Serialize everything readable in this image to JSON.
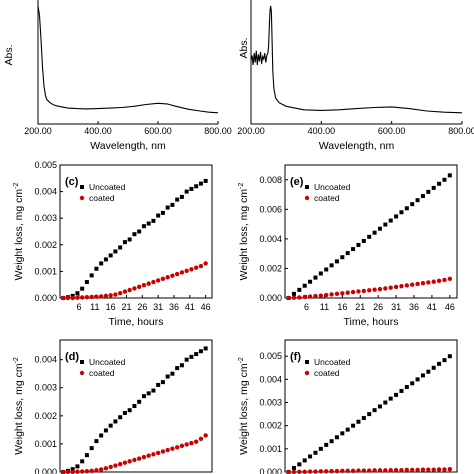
{
  "chart_data": [
    {
      "type": "line",
      "panel": "top-left",
      "xlabel": "Wavelength, nm",
      "ylabel": "Abs.",
      "xlim": [
        200,
        800
      ],
      "xticks": [
        "200.00",
        "400.00",
        "600.00",
        "800.00"
      ],
      "x": [
        200,
        205,
        210,
        215,
        220,
        225,
        230,
        240,
        250,
        260,
        280,
        300,
        330,
        360,
        400,
        440,
        480,
        520,
        560,
        600,
        630,
        660,
        700,
        740,
        770,
        800
      ],
      "y": [
        1.0,
        0.92,
        0.72,
        0.48,
        0.32,
        0.24,
        0.205,
        0.18,
        0.165,
        0.155,
        0.145,
        0.135,
        0.13,
        0.128,
        0.13,
        0.135,
        0.14,
        0.15,
        0.165,
        0.175,
        0.17,
        0.15,
        0.125,
        0.11,
        0.1,
        0.095
      ],
      "ylim": [
        0,
        1.05
      ]
    },
    {
      "type": "line",
      "panel": "top-right",
      "xlabel": "Wavelength, nm",
      "ylabel": "Abs.",
      "xlim": [
        200,
        800
      ],
      "xticks": [
        "200.00",
        "400.00",
        "600.00",
        "800.00"
      ],
      "x": [
        200,
        203,
        206,
        209,
        212,
        215,
        218,
        221,
        224,
        227,
        230,
        233,
        236,
        239,
        242,
        245,
        248,
        250,
        252,
        254,
        256,
        258,
        260,
        262,
        265,
        270,
        280,
        300,
        350,
        400,
        450,
        500,
        550,
        600,
        650,
        700,
        750,
        800
      ],
      "y": [
        0.54,
        0.58,
        0.5,
        0.6,
        0.52,
        0.62,
        0.5,
        0.59,
        0.53,
        0.61,
        0.51,
        0.57,
        0.55,
        0.6,
        0.52,
        0.58,
        0.6,
        0.66,
        0.82,
        0.96,
        1.0,
        0.95,
        0.7,
        0.45,
        0.3,
        0.22,
        0.18,
        0.15,
        0.12,
        0.115,
        0.12,
        0.13,
        0.14,
        0.145,
        0.13,
        0.11,
        0.1,
        0.095
      ],
      "ylim": [
        0,
        1.05
      ]
    },
    {
      "type": "scatter",
      "panel": "(c)",
      "label": "(c)",
      "xlabel": "Time, hours",
      "ylabel": "Weight loss, mg cm",
      "ylabel_sup": "-2",
      "xlim": [
        0,
        48
      ],
      "ylim": [
        0,
        0.005
      ],
      "xticks": [
        "6",
        "11",
        "16",
        "21",
        "26",
        "31",
        "36",
        "41",
        "46"
      ],
      "yticks": [
        "0.000",
        "0.001",
        "0.002",
        "0.003",
        "0.004",
        "0.005"
      ],
      "legend_location": "upper-left",
      "series": [
        {
          "name": "Uncoated",
          "color": "#000000",
          "x": [
            1,
            2.5,
            4,
            5.5,
            7,
            8.5,
            10,
            11.5,
            13,
            14.5,
            16,
            17.5,
            19,
            20.5,
            22,
            23.5,
            25,
            26.5,
            28,
            29.5,
            31,
            32.5,
            34,
            35.5,
            37,
            38.5,
            40,
            41.5,
            43,
            44.5,
            46
          ],
          "y": [
            0.0,
            3e-05,
            8e-05,
            0.00018,
            0.00035,
            0.0006,
            0.00085,
            0.0011,
            0.0013,
            0.00145,
            0.0016,
            0.00175,
            0.0019,
            0.0021,
            0.0022,
            0.0024,
            0.0025,
            0.0027,
            0.0028,
            0.0029,
            0.0031,
            0.0032,
            0.0034,
            0.0035,
            0.0037,
            0.0038,
            0.004,
            0.0041,
            0.0042,
            0.0043,
            0.0044
          ]
        },
        {
          "name": "coated",
          "color": "#cc0000",
          "x": [
            1,
            2.5,
            4,
            5.5,
            7,
            8.5,
            10,
            11.5,
            13,
            14.5,
            16,
            17.5,
            19,
            20.5,
            22,
            23.5,
            25,
            26.5,
            28,
            29.5,
            31,
            32.5,
            34,
            35.5,
            37,
            38.5,
            40,
            41.5,
            43,
            44.5,
            46
          ],
          "y": [
            0.0,
            0.0,
            0.0,
            1e-05,
            2e-05,
            3e-05,
            4e-05,
            5e-05,
            6e-05,
            8e-05,
            0.0001,
            0.00013,
            0.00018,
            0.00024,
            0.0003,
            0.00036,
            0.00042,
            0.00048,
            0.00054,
            0.0006,
            0.00066,
            0.00072,
            0.00078,
            0.00084,
            0.0009,
            0.00096,
            0.00102,
            0.00108,
            0.00114,
            0.0012,
            0.0013
          ]
        }
      ]
    },
    {
      "type": "scatter",
      "panel": "(e)",
      "label": "(e)",
      "xlabel": "Time, hours",
      "ylabel": "Weight loss, mg cm",
      "ylabel_sup": "-2",
      "xlim": [
        0,
        48
      ],
      "ylim": [
        0,
        0.009
      ],
      "xticks": [
        "6",
        "11",
        "16",
        "21",
        "26",
        "31",
        "36",
        "41",
        "46"
      ],
      "yticks": [
        "0.000",
        "0.002",
        "0.004",
        "0.006",
        "0.008"
      ],
      "legend_location": "upper-left",
      "series": [
        {
          "name": "Uncoated",
          "color": "#000000",
          "x": [
            1,
            2.5,
            4,
            5.5,
            7,
            8.5,
            10,
            11.5,
            13,
            14.5,
            16,
            17.5,
            19,
            20.5,
            22,
            23.5,
            25,
            26.5,
            28,
            29.5,
            31,
            32.5,
            34,
            35.5,
            37,
            38.5,
            40,
            41.5,
            43,
            44.5,
            46
          ],
          "y": [
            0.0,
            0.00028,
            0.00055,
            0.00083,
            0.0011,
            0.00138,
            0.00166,
            0.00193,
            0.00221,
            0.00248,
            0.00276,
            0.00304,
            0.00331,
            0.00359,
            0.00386,
            0.00414,
            0.00442,
            0.00469,
            0.00497,
            0.00524,
            0.00552,
            0.0058,
            0.00607,
            0.00635,
            0.00662,
            0.0069,
            0.00718,
            0.00745,
            0.00773,
            0.008,
            0.0083
          ]
        },
        {
          "name": "coated",
          "color": "#cc0000",
          "x": [
            1,
            2.5,
            4,
            5.5,
            7,
            8.5,
            10,
            11.5,
            13,
            14.5,
            16,
            17.5,
            19,
            20.5,
            22,
            23.5,
            25,
            26.5,
            28,
            29.5,
            31,
            32.5,
            34,
            35.5,
            37,
            38.5,
            40,
            41.5,
            43,
            44.5,
            46
          ],
          "y": [
            0.0,
            2e-05,
            4e-05,
            7e-05,
            0.0001,
            0.00013,
            0.00016,
            0.0002,
            0.00024,
            0.00028,
            0.00032,
            0.00036,
            0.0004,
            0.00044,
            0.00048,
            0.00052,
            0.00056,
            0.0006,
            0.00065,
            0.0007,
            0.00075,
            0.0008,
            0.00085,
            0.0009,
            0.00095,
            0.001,
            0.00105,
            0.0011,
            0.00116,
            0.00122,
            0.0013
          ]
        }
      ]
    },
    {
      "type": "scatter",
      "panel": "(d)",
      "label": "(d)",
      "ylabel": "Weight loss, mg cm",
      "ylabel_sup": "-2",
      "xlim": [
        0,
        48
      ],
      "ylim": [
        0,
        0.0047
      ],
      "yticks": [
        "0.000",
        "0.001",
        "0.002",
        "0.003",
        "0.004"
      ],
      "legend_location": "upper-left",
      "series": [
        {
          "name": "Uncoated",
          "color": "#000000",
          "x": [
            1,
            2.5,
            4,
            5.5,
            7,
            8.5,
            10,
            11.5,
            13,
            14.5,
            16,
            17.5,
            19,
            20.5,
            22,
            23.5,
            25,
            26.5,
            28,
            29.5,
            31,
            32.5,
            34,
            35.5,
            37,
            38.5,
            40,
            41.5,
            43,
            44.5,
            46
          ],
          "y": [
            0.0,
            4e-05,
            0.0001,
            0.0002,
            0.00038,
            0.0006,
            0.00085,
            0.0011,
            0.0013,
            0.00148,
            0.00165,
            0.0018,
            0.00195,
            0.0021,
            0.0022,
            0.00235,
            0.0025,
            0.0027,
            0.0028,
            0.0029,
            0.0031,
            0.0032,
            0.0034,
            0.0035,
            0.0037,
            0.0038,
            0.004,
            0.0041,
            0.0042,
            0.0043,
            0.0044
          ]
        },
        {
          "name": "coated",
          "color": "#cc0000",
          "x": [
            1,
            2.5,
            4,
            5.5,
            7,
            8.5,
            10,
            11.5,
            13,
            14.5,
            16,
            17.5,
            19,
            20.5,
            22,
            23.5,
            25,
            26.5,
            28,
            29.5,
            31,
            32.5,
            34,
            35.5,
            37,
            38.5,
            40,
            41.5,
            43,
            44.5,
            46
          ],
          "y": [
            0.0,
            0.0,
            0.0,
            1e-05,
            2e-05,
            3e-05,
            4e-05,
            6e-05,
            9e-05,
            0.00013,
            0.00018,
            0.00023,
            0.00028,
            0.00033,
            0.00038,
            0.00043,
            0.00048,
            0.00053,
            0.00058,
            0.00063,
            0.00068,
            0.00073,
            0.00078,
            0.00083,
            0.00088,
            0.00093,
            0.00098,
            0.00103,
            0.00108,
            0.00118,
            0.0013
          ]
        }
      ]
    },
    {
      "type": "scatter",
      "panel": "(f)",
      "label": "(f)",
      "ylabel": "Weight loss, mg cm",
      "ylabel_sup": "-2",
      "xlim": [
        0,
        48
      ],
      "ylim": [
        0,
        0.0057
      ],
      "yticks": [
        "0.000",
        "0.001",
        "0.002",
        "0.003",
        "0.004",
        "0.005"
      ],
      "legend_location": "upper-left",
      "series": [
        {
          "name": "Uncoated",
          "color": "#000000",
          "x": [
            1,
            2.5,
            4,
            5.5,
            7,
            8.5,
            10,
            11.5,
            13,
            14.5,
            16,
            17.5,
            19,
            20.5,
            22,
            23.5,
            25,
            26.5,
            28,
            29.5,
            31,
            32.5,
            34,
            35.5,
            37,
            38.5,
            40,
            41.5,
            43,
            44.5,
            46
          ],
          "y": [
            0.0,
            0.00017,
            0.00033,
            0.0005,
            0.00067,
            0.00083,
            0.001,
            0.00117,
            0.00133,
            0.0015,
            0.00167,
            0.00183,
            0.002,
            0.00217,
            0.00233,
            0.0025,
            0.00267,
            0.00283,
            0.003,
            0.00317,
            0.00333,
            0.0035,
            0.00367,
            0.00383,
            0.004,
            0.00417,
            0.00433,
            0.0045,
            0.00467,
            0.00483,
            0.005
          ]
        },
        {
          "name": "coated",
          "color": "#cc0000",
          "x": [
            1,
            2.5,
            4,
            5.5,
            7,
            8.5,
            10,
            11.5,
            13,
            14.5,
            16,
            17.5,
            19,
            20.5,
            22,
            23.5,
            25,
            26.5,
            28,
            29.5,
            31,
            32.5,
            34,
            35.5,
            37,
            38.5,
            40,
            41.5,
            43,
            44.5,
            46
          ],
          "y": [
            0.0,
            0.0,
            1e-05,
            1e-05,
            2e-05,
            2e-05,
            3e-05,
            3e-05,
            4e-05,
            4e-05,
            5e-05,
            5e-05,
            5e-05,
            6e-05,
            6e-05,
            6e-05,
            7e-05,
            7e-05,
            7e-05,
            8e-05,
            8e-05,
            8e-05,
            9e-05,
            9e-05,
            9e-05,
            0.0001,
            0.0001,
            0.0001,
            0.00011,
            0.00011,
            0.00012
          ]
        }
      ]
    }
  ]
}
